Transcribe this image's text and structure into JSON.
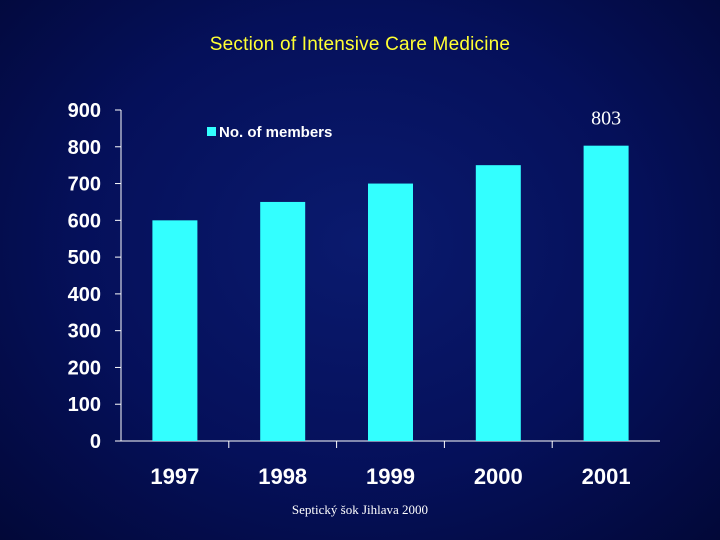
{
  "slide": {
    "title": "Section of Intensive Care Medicine",
    "footer": "Septický šok Jihlava 2000"
  },
  "colors": {
    "bar": "#33ffff",
    "axis": "#ffffff",
    "title": "#ffff33"
  },
  "chart_data": {
    "type": "bar",
    "categories": [
      "1997",
      "1998",
      "1999",
      "2000",
      "2001"
    ],
    "series": [
      {
        "name": "No. of members",
        "values": [
          600,
          650,
          700,
          750,
          803
        ]
      }
    ],
    "ylim": [
      0,
      900
    ],
    "yticks": [
      0,
      100,
      200,
      300,
      400,
      500,
      600,
      700,
      800,
      900
    ],
    "data_labels": [
      {
        "category": "2001",
        "text": "803"
      }
    ],
    "legend": "top-left",
    "grid": false
  }
}
